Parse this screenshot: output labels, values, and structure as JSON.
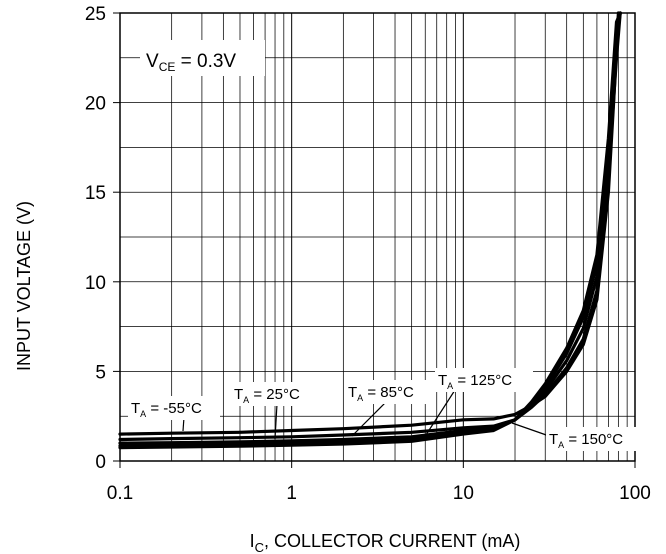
{
  "chart_data": {
    "type": "line",
    "x_scale": "log",
    "xlim": [
      0.1,
      100
    ],
    "ylim": [
      0,
      25
    ],
    "xlabel": {
      "main": "I",
      "sub": "C",
      "rest": ",  COLLECTOR CURRENT (mA)"
    },
    "ylabel": "INPUT VOLTAGE (V)",
    "x_ticks": [
      {
        "value": 0.1,
        "label": "0.1"
      },
      {
        "value": 1,
        "label": "1"
      },
      {
        "value": 10,
        "label": "10"
      },
      {
        "value": 100,
        "label": "100"
      }
    ],
    "y_ticks": [
      {
        "value": 0,
        "label": "0"
      },
      {
        "value": 5,
        "label": "5"
      },
      {
        "value": 10,
        "label": "10"
      },
      {
        "value": 15,
        "label": "15"
      },
      {
        "value": 20,
        "label": "20"
      },
      {
        "value": 25,
        "label": "25"
      }
    ],
    "grid": true,
    "condition": {
      "main": "V",
      "sub": "CE",
      "rest": " = 0.3V"
    },
    "line_color": "#000000",
    "series": [
      {
        "name": {
          "main": "T",
          "sub": "A",
          "rest": " = -55°C"
        },
        "points": [
          [
            0.1,
            1.5
          ],
          [
            0.2,
            1.55
          ],
          [
            0.5,
            1.6
          ],
          [
            1,
            1.7
          ],
          [
            2,
            1.8
          ],
          [
            5,
            2.0
          ],
          [
            10,
            2.3
          ],
          [
            15,
            2.35
          ],
          [
            20,
            2.6
          ],
          [
            25,
            3.1
          ],
          [
            30,
            3.6
          ],
          [
            40,
            5.0
          ],
          [
            50,
            6.5
          ],
          [
            60,
            9.0
          ],
          [
            70,
            15.0
          ],
          [
            75,
            20.0
          ],
          [
            80,
            25.0
          ]
        ]
      },
      {
        "name": {
          "main": "T",
          "sub": "A",
          "rest": " = 25°C"
        },
        "points": [
          [
            0.1,
            1.2
          ],
          [
            0.2,
            1.25
          ],
          [
            0.5,
            1.3
          ],
          [
            1,
            1.35
          ],
          [
            2,
            1.45
          ],
          [
            5,
            1.6
          ],
          [
            10,
            1.85
          ],
          [
            15,
            1.95
          ],
          [
            20,
            2.3
          ],
          [
            25,
            3.0
          ],
          [
            30,
            3.7
          ],
          [
            40,
            5.2
          ],
          [
            50,
            6.8
          ],
          [
            60,
            9.5
          ],
          [
            70,
            16.0
          ],
          [
            78,
            22.5
          ],
          [
            82,
            25.0
          ]
        ]
      },
      {
        "name": {
          "main": "T",
          "sub": "A",
          "rest": " = 85°C"
        },
        "points": [
          [
            0.1,
            1.0
          ],
          [
            0.2,
            1.02
          ],
          [
            0.5,
            1.07
          ],
          [
            1,
            1.12
          ],
          [
            2,
            1.2
          ],
          [
            5,
            1.35
          ],
          [
            10,
            1.7
          ],
          [
            15,
            1.8
          ],
          [
            20,
            2.3
          ],
          [
            25,
            3.1
          ],
          [
            30,
            3.9
          ],
          [
            40,
            5.6
          ],
          [
            50,
            7.4
          ],
          [
            60,
            10.3
          ],
          [
            70,
            17.0
          ],
          [
            78,
            23.5
          ],
          [
            82,
            25.0
          ]
        ]
      },
      {
        "name": {
          "main": "T",
          "sub": "A",
          "rest": " = 125°C"
        },
        "points": [
          [
            0.1,
            0.85
          ],
          [
            0.2,
            0.88
          ],
          [
            0.5,
            0.93
          ],
          [
            1,
            0.98
          ],
          [
            2,
            1.05
          ],
          [
            5,
            1.2
          ],
          [
            10,
            1.6
          ],
          [
            15,
            1.75
          ],
          [
            20,
            2.3
          ],
          [
            25,
            3.2
          ],
          [
            30,
            4.1
          ],
          [
            40,
            6.0
          ],
          [
            50,
            8.0
          ],
          [
            60,
            11.0
          ],
          [
            70,
            17.5
          ],
          [
            78,
            24.0
          ],
          [
            82,
            25.0
          ]
        ]
      },
      {
        "name": {
          "main": "T",
          "sub": "A",
          "rest": " = 150°C"
        },
        "points": [
          [
            0.1,
            0.75
          ],
          [
            0.2,
            0.78
          ],
          [
            0.5,
            0.83
          ],
          [
            1,
            0.88
          ],
          [
            2,
            0.95
          ],
          [
            5,
            1.1
          ],
          [
            10,
            1.5
          ],
          [
            15,
            1.7
          ],
          [
            20,
            2.3
          ],
          [
            25,
            3.3
          ],
          [
            30,
            4.3
          ],
          [
            40,
            6.3
          ],
          [
            50,
            8.4
          ],
          [
            60,
            11.5
          ],
          [
            70,
            18.0
          ],
          [
            78,
            24.5
          ],
          [
            82,
            25.0
          ]
        ]
      }
    ]
  }
}
